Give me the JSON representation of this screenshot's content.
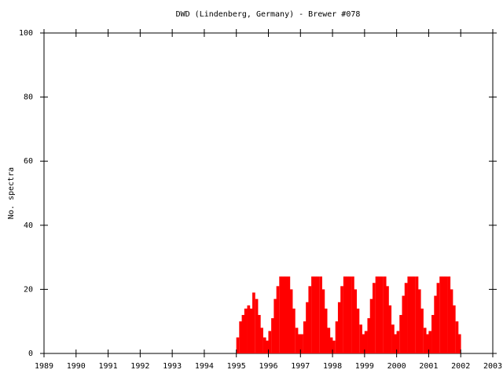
{
  "chart_data": {
    "type": "bar",
    "title": "DWD (Lindenberg, Germany) - Brewer #078",
    "y_label": "No. spectra",
    "color": "#ff0000",
    "x": [
      1995.04,
      1995.13,
      1995.21,
      1995.29,
      1995.38,
      1995.46,
      1995.54,
      1995.63,
      1995.71,
      1995.79,
      1995.88,
      1995.96,
      1996.04,
      1996.13,
      1996.21,
      1996.29,
      1996.38,
      1996.46,
      1996.54,
      1996.63,
      1996.71,
      1996.79,
      1996.88,
      1996.96,
      1997.04,
      1997.13,
      1997.21,
      1997.29,
      1997.38,
      1997.46,
      1997.54,
      1997.63,
      1997.71,
      1997.79,
      1997.88,
      1997.96,
      1998.04,
      1998.13,
      1998.21,
      1998.29,
      1998.38,
      1998.46,
      1998.54,
      1998.63,
      1998.71,
      1998.79,
      1998.88,
      1998.96,
      1999.04,
      1999.13,
      1999.21,
      1999.29,
      1999.38,
      1999.46,
      1999.54,
      1999.63,
      1999.71,
      1999.79,
      1999.88,
      1999.96,
      2000.04,
      2000.13,
      2000.21,
      2000.29,
      2000.38,
      2000.46,
      2000.54,
      2000.63,
      2000.71,
      2000.79,
      2000.88,
      2000.96,
      2001.04,
      2001.13,
      2001.21,
      2001.29,
      2001.38,
      2001.46,
      2001.54,
      2001.63,
      2001.71,
      2001.79,
      2001.88,
      2001.96
    ],
    "values": [
      5,
      10,
      12,
      14,
      15,
      14,
      19,
      17,
      12,
      8,
      5,
      4,
      7,
      11,
      17,
      21,
      24,
      24,
      24,
      24,
      20,
      14,
      8,
      6,
      6,
      10,
      16,
      21,
      24,
      24,
      24,
      24,
      20,
      14,
      8,
      5,
      4,
      10,
      16,
      21,
      24,
      24,
      24,
      24,
      20,
      14,
      9,
      6,
      7,
      11,
      17,
      22,
      24,
      24,
      24,
      24,
      21,
      15,
      9,
      6,
      7,
      12,
      18,
      22,
      24,
      24,
      24,
      24,
      20,
      14,
      8,
      6,
      7,
      12,
      18,
      22,
      24,
      24,
      24,
      24,
      20,
      15,
      10,
      6
    ],
    "xlim": [
      1989,
      2003
    ],
    "xticks": [
      1989,
      1990,
      1991,
      1992,
      1993,
      1994,
      1995,
      1996,
      1997,
      1998,
      1999,
      2000,
      2001,
      2002,
      2003
    ],
    "ylim": [
      0,
      100
    ],
    "yticks": [
      0,
      20,
      40,
      60,
      80,
      100
    ]
  }
}
